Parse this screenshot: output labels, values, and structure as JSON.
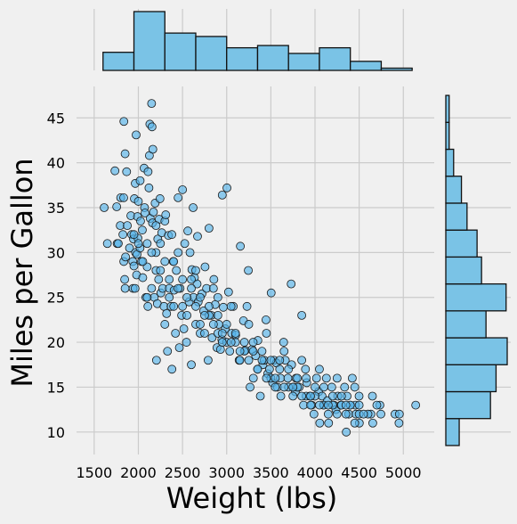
{
  "chart_data": {
    "type": "scatter",
    "xlabel": "Weight (lbs)",
    "ylabel": "Miles per Gallon",
    "xlim": [
      1300,
      5350
    ],
    "ylim": [
      7.5,
      48.5
    ],
    "x_ticks": [
      1500,
      2000,
      2500,
      3000,
      3500,
      4000,
      4500,
      5000
    ],
    "y_ticks": [
      10,
      15,
      20,
      25,
      30,
      35,
      40,
      45
    ],
    "colors": {
      "fill": "#56b4e9",
      "marginal_fill": "#7ac3e6",
      "edge": "#111111",
      "background": "#f0f0f0",
      "grid": "#cbcbcb"
    },
    "marginal_x_hist": {
      "bin_edges": [
        1600,
        1950,
        2300,
        2650,
        3000,
        3350,
        3700,
        4050,
        4400,
        4750,
        5100
      ],
      "counts": [
        16,
        52,
        33,
        30,
        20,
        22,
        15,
        20,
        8,
        2
      ]
    },
    "marginal_y_hist": {
      "bin_edges": [
        8.5,
        11.5,
        14.5,
        17.5,
        20.5,
        23.5,
        26.5,
        29.5,
        32.5,
        35.5,
        38.5,
        41.5,
        44.5,
        47.5
      ],
      "counts": [
        12,
        40,
        45,
        55,
        36,
        54,
        32,
        28,
        19,
        14,
        7,
        3,
        3
      ]
    },
    "points": [
      [
        1613,
        35
      ],
      [
        1649,
        31
      ],
      [
        1735,
        39.1
      ],
      [
        1755,
        35.1
      ],
      [
        1760,
        31
      ],
      [
        1773,
        31
      ],
      [
        1795,
        33
      ],
      [
        1800,
        36.1
      ],
      [
        1825,
        32
      ],
      [
        1834,
        36.1
      ],
      [
        1835,
        29
      ],
      [
        1836,
        44.6
      ],
      [
        1845,
        27
      ],
      [
        1850,
        26
      ],
      [
        1850,
        41
      ],
      [
        1855,
        29.5
      ],
      [
        1867,
        39
      ],
      [
        1875,
        33
      ],
      [
        1900,
        30.5
      ],
      [
        1915,
        34.1
      ],
      [
        1925,
        32
      ],
      [
        1937,
        29
      ],
      [
        1940,
        26
      ],
      [
        1945,
        31.5
      ],
      [
        1950,
        28.5
      ],
      [
        1955,
        36
      ],
      [
        1963,
        26
      ],
      [
        1965,
        37.7
      ],
      [
        1968,
        30
      ],
      [
        1975,
        43.1
      ],
      [
        1980,
        27.5
      ],
      [
        1985,
        29.8
      ],
      [
        1990,
        34
      ],
      [
        1995,
        31.6
      ],
      [
        2000,
        35.7
      ],
      [
        2019,
        30.5
      ],
      [
        2020,
        38
      ],
      [
        2025,
        33.5
      ],
      [
        2035,
        29
      ],
      [
        2045,
        32.5
      ],
      [
        2050,
        27.2
      ],
      [
        2065,
        39.4
      ],
      [
        2070,
        35
      ],
      [
        2075,
        34.4
      ],
      [
        2085,
        25
      ],
      [
        2100,
        28.4
      ],
      [
        2108,
        24
      ],
      [
        2110,
        39
      ],
      [
        2120,
        37.2
      ],
      [
        2125,
        40.8
      ],
      [
        2130,
        44.3
      ],
      [
        2135,
        33.8
      ],
      [
        2150,
        46.6
      ],
      [
        2155,
        44
      ],
      [
        2160,
        33.3
      ],
      [
        2164,
        41.5
      ],
      [
        2171,
        34.5
      ],
      [
        2180,
        25
      ],
      [
        2190,
        35.5
      ],
      [
        2200,
        28
      ],
      [
        2205,
        18
      ],
      [
        2215,
        24.3
      ],
      [
        2220,
        31.5
      ],
      [
        2230,
        27
      ],
      [
        2235,
        33.7
      ],
      [
        2245,
        36
      ],
      [
        2255,
        25.5
      ],
      [
        2265,
        32.2
      ],
      [
        2275,
        26
      ],
      [
        2290,
        24
      ],
      [
        2300,
        33.5
      ],
      [
        2310,
        34.2
      ],
      [
        2320,
        23.2
      ],
      [
        2330,
        19
      ],
      [
        2340,
        31.9
      ],
      [
        2350,
        26
      ],
      [
        2370,
        24
      ],
      [
        2379,
        32
      ],
      [
        2380,
        17
      ],
      [
        2395,
        29
      ],
      [
        2405,
        25.8
      ],
      [
        2420,
        21
      ],
      [
        2430,
        28
      ],
      [
        2450,
        36.1
      ],
      [
        2464,
        19.4
      ],
      [
        2472,
        26
      ],
      [
        2490,
        23
      ],
      [
        2500,
        37
      ],
      [
        2515,
        21.5
      ],
      [
        2525,
        31
      ],
      [
        2545,
        20
      ],
      [
        2560,
        32.4
      ],
      [
        2575,
        24.5
      ],
      [
        2585,
        30
      ],
      [
        2600,
        17.5
      ],
      [
        2606,
        28.1
      ],
      [
        2620,
        35
      ],
      [
        2625,
        25
      ],
      [
        2635,
        27.2
      ],
      [
        2650,
        22
      ],
      [
        2665,
        26.5
      ],
      [
        2670,
        31.8
      ],
      [
        2678,
        24.5
      ],
      [
        2700,
        21
      ],
      [
        2720,
        25.4
      ],
      [
        2740,
        23.5
      ],
      [
        2755,
        28.4
      ],
      [
        2772,
        26
      ],
      [
        2790,
        18
      ],
      [
        2800,
        32.7
      ],
      [
        2825,
        23
      ],
      [
        2835,
        20.5
      ],
      [
        2855,
        27
      ],
      [
        2870,
        24.2
      ],
      [
        2890,
        19.4
      ],
      [
        2900,
        25
      ],
      [
        2910,
        22
      ],
      [
        2930,
        19.2
      ],
      [
        2945,
        20.3
      ],
      [
        2950,
        36.4
      ],
      [
        2962,
        23.9
      ],
      [
        2984,
        21.5
      ],
      [
        3003,
        37.2
      ],
      [
        3021,
        25.6
      ],
      [
        3035,
        19
      ],
      [
        3057,
        21
      ],
      [
        3075,
        24
      ],
      [
        3102,
        20.8
      ],
      [
        3141,
        18
      ],
      [
        3155,
        30.7
      ],
      [
        3190,
        22.4
      ],
      [
        3211,
        19.1
      ],
      [
        3230,
        24
      ],
      [
        3245,
        28
      ],
      [
        3265,
        15
      ],
      [
        3288,
        19.2
      ],
      [
        3302,
        16
      ],
      [
        3329,
        18.5
      ],
      [
        3353,
        20.2
      ],
      [
        3381,
        14
      ],
      [
        3410,
        17.5
      ],
      [
        3425,
        18
      ],
      [
        3445,
        22.5
      ],
      [
        3465,
        16.5
      ],
      [
        3485,
        17
      ],
      [
        3504,
        25.5
      ],
      [
        3520,
        15.5
      ],
      [
        3535,
        18
      ],
      [
        3563,
        17.7
      ],
      [
        3574,
        15
      ],
      [
        3609,
        16
      ],
      [
        3613,
        14
      ],
      [
        3645,
        20
      ],
      [
        3664,
        18
      ],
      [
        3693,
        16
      ],
      [
        3730,
        26.5
      ],
      [
        3735,
        17.5
      ],
      [
        3755,
        15
      ],
      [
        3777,
        14.5
      ],
      [
        3785,
        16
      ],
      [
        3820,
        15
      ],
      [
        3850,
        23
      ],
      [
        3870,
        13
      ],
      [
        3892,
        17
      ],
      [
        3907,
        15.5
      ],
      [
        3940,
        14
      ],
      [
        3962,
        13
      ],
      [
        3988,
        12
      ],
      [
        4017,
        16
      ],
      [
        4042,
        14.5
      ],
      [
        4054,
        11
      ],
      [
        4080,
        14
      ],
      [
        4096,
        13
      ],
      [
        4129,
        16
      ],
      [
        4141,
        13.5
      ],
      [
        4154,
        11
      ],
      [
        4190,
        15
      ],
      [
        4215,
        13
      ],
      [
        4237,
        12.5
      ],
      [
        4257,
        14
      ],
      [
        4294,
        13
      ],
      [
        4335,
        15
      ],
      [
        4354,
        10
      ],
      [
        4363,
        14
      ],
      [
        4382,
        12
      ],
      [
        4422,
        16
      ],
      [
        4456,
        13
      ],
      [
        4464,
        12
      ],
      [
        4499,
        14
      ],
      [
        4502,
        11
      ],
      [
        4633,
        12
      ],
      [
        4654,
        11
      ],
      [
        4735,
        13
      ],
      [
        4746,
        12
      ],
      [
        4906,
        12
      ],
      [
        4951,
        11
      ],
      [
        4955,
        12
      ],
      [
        5140,
        13
      ],
      [
        2200,
        30
      ],
      [
        2100,
        25
      ],
      [
        2400,
        24
      ],
      [
        2600,
        27
      ],
      [
        2800,
        23
      ],
      [
        3000,
        20
      ],
      [
        3200,
        19
      ],
      [
        3400,
        18
      ],
      [
        3600,
        17
      ],
      [
        3800,
        15
      ],
      [
        4000,
        14
      ],
      [
        4200,
        13
      ],
      [
        4400,
        13
      ],
      [
        2300,
        22
      ],
      [
        2500,
        24
      ],
      [
        2700,
        22
      ],
      [
        2900,
        21
      ],
      [
        3100,
        20
      ],
      [
        3300,
        19
      ],
      [
        3500,
        16
      ],
      [
        3700,
        15
      ],
      [
        3900,
        14
      ],
      [
        4100,
        13
      ],
      [
        4300,
        13
      ],
      [
        4500,
        12
      ],
      [
        2050,
        29
      ],
      [
        2150,
        30
      ],
      [
        2250,
        28
      ],
      [
        2350,
        27
      ],
      [
        2450,
        26
      ],
      [
        2550,
        25
      ],
      [
        2650,
        24
      ],
      [
        2750,
        23
      ],
      [
        2850,
        22
      ],
      [
        2950,
        21
      ],
      [
        3050,
        20
      ],
      [
        3150,
        19
      ],
      [
        3250,
        18
      ],
      [
        3350,
        17
      ],
      [
        3450,
        16
      ],
      [
        3550,
        16
      ],
      [
        3650,
        15
      ],
      [
        3750,
        14
      ],
      [
        3850,
        14
      ],
      [
        3950,
        13
      ],
      [
        4050,
        13
      ],
      [
        4150,
        12
      ],
      [
        4250,
        12
      ],
      [
        4350,
        12
      ],
      [
        4450,
        11
      ],
      [
        2000,
        31
      ],
      [
        2200,
        33
      ],
      [
        2400,
        29
      ],
      [
        2600,
        26
      ],
      [
        2800,
        24
      ],
      [
        3000,
        22
      ],
      [
        3200,
        20
      ],
      [
        3400,
        19
      ],
      [
        3600,
        18
      ],
      [
        3800,
        16
      ],
      [
        4000,
        15
      ],
      [
        4200,
        14
      ],
      [
        4400,
        13
      ],
      [
        4600,
        12
      ],
      [
        2150,
        26
      ],
      [
        2350,
        25
      ],
      [
        2550,
        23
      ],
      [
        2750,
        21
      ],
      [
        2950,
        20
      ],
      [
        3150,
        18
      ],
      [
        3350,
        17
      ],
      [
        3550,
        15
      ],
      [
        3750,
        15
      ],
      [
        3950,
        14
      ],
      [
        4150,
        13
      ],
      [
        4350,
        13
      ],
      [
        4550,
        12
      ],
      [
        2100,
        31
      ],
      [
        2300,
        29
      ],
      [
        2500,
        27
      ],
      [
        2700,
        25
      ],
      [
        2900,
        23
      ],
      [
        3100,
        21
      ],
      [
        3300,
        20
      ],
      [
        3500,
        18
      ],
      [
        3700,
        17
      ],
      [
        3900,
        16
      ],
      [
        4100,
        15
      ],
      [
        4300,
        14
      ],
      [
        4500,
        13
      ],
      [
        4700,
        13
      ],
      [
        1950,
        32
      ],
      [
        2250,
        31
      ],
      [
        2450,
        30
      ],
      [
        2650,
        28
      ],
      [
        2850,
        26
      ],
      [
        3050,
        24
      ],
      [
        3250,
        22
      ],
      [
        3450,
        21
      ],
      [
        3650,
        19
      ],
      [
        3850,
        18
      ],
      [
        4050,
        17
      ],
      [
        4250,
        16
      ],
      [
        4450,
        15
      ],
      [
        4650,
        14
      ]
    ]
  }
}
